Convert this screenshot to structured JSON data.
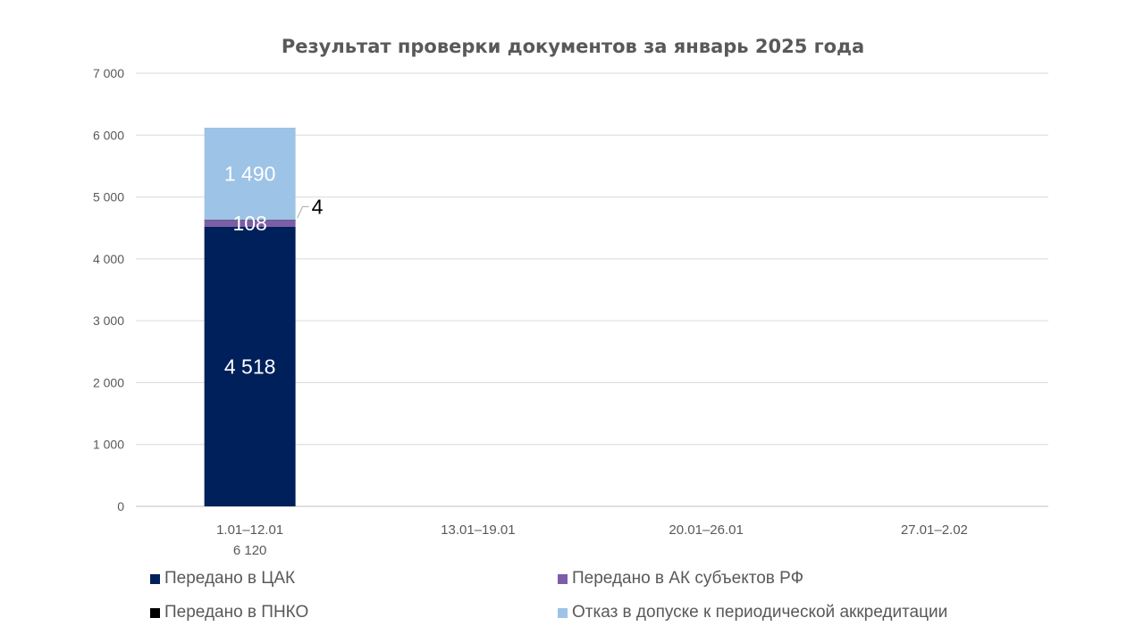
{
  "chart_data": {
    "type": "bar",
    "stacked": true,
    "title": "Результат проверки документов за январь 2025 года",
    "categories": [
      {
        "label": "1.01–12.01",
        "total_label": "6 120"
      },
      {
        "label": "13.01–19.01",
        "total_label": ""
      },
      {
        "label": "20.01–26.01",
        "total_label": ""
      },
      {
        "label": "27.01–2.02",
        "total_label": ""
      }
    ],
    "series": [
      {
        "name": "Передано в ЦАК",
        "color": "#00205b",
        "values": [
          4518,
          null,
          null,
          null
        ],
        "labels": [
          "4 518",
          "",
          "",
          ""
        ],
        "label_placement": "inside"
      },
      {
        "name": "Передано в АК субъектов РФ",
        "color": "#7b5ea7",
        "values": [
          108,
          null,
          null,
          null
        ],
        "labels": [
          "108",
          "",
          "",
          ""
        ],
        "label_placement": "inside"
      },
      {
        "name": "Передано в ПНКО",
        "color": "#000000",
        "values": [
          4,
          null,
          null,
          null
        ],
        "labels": [
          "4",
          "",
          "",
          ""
        ],
        "label_placement": "outside"
      },
      {
        "name": "Отказ в допуске к периодической аккредитации",
        "color": "#9dc3e6",
        "values": [
          1490,
          null,
          null,
          null
        ],
        "labels": [
          "1 490",
          "",
          "",
          ""
        ],
        "label_placement": "inside"
      }
    ],
    "ylim": [
      0,
      7000
    ],
    "yticks": [
      {
        "value": 0,
        "label": "0"
      },
      {
        "value": 1000,
        "label": "1 000"
      },
      {
        "value": 2000,
        "label": "2 000"
      },
      {
        "value": 3000,
        "label": "3 000"
      },
      {
        "value": 4000,
        "label": "4 000"
      },
      {
        "value": 5000,
        "label": "5 000"
      },
      {
        "value": 6000,
        "label": "6 000"
      },
      {
        "value": 7000,
        "label": "7 000"
      }
    ],
    "grid": true,
    "legend_position": "bottom"
  }
}
